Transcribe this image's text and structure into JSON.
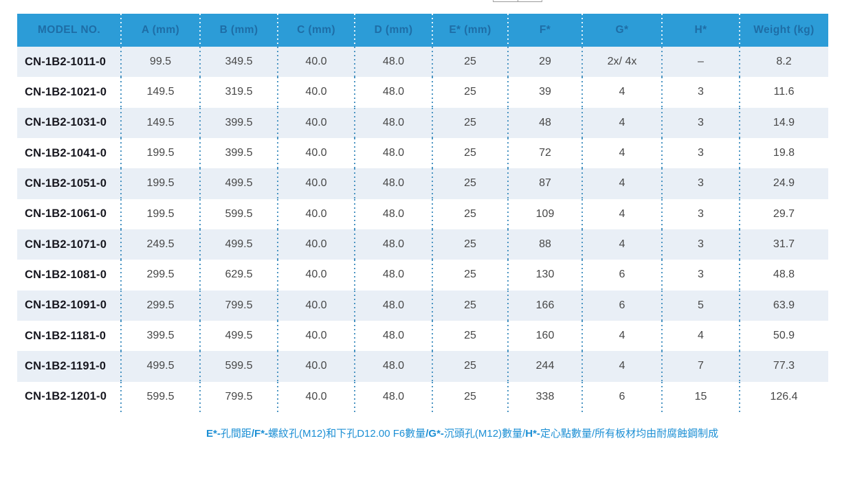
{
  "table": {
    "columns": [
      "MODEL NO.",
      "A (mm)",
      "B (mm)",
      "C (mm)",
      "D (mm)",
      "E* (mm)",
      "F*",
      "G*",
      "H*",
      "Weight (kg)"
    ],
    "rows": [
      [
        "CN-1B2-1011-0",
        "99.5",
        "349.5",
        "40.0",
        "48.0",
        "25",
        "29",
        "2x/ 4x",
        "–",
        "8.2"
      ],
      [
        "CN-1B2-1021-0",
        "149.5",
        "319.5",
        "40.0",
        "48.0",
        "25",
        "39",
        "4",
        "3",
        "11.6"
      ],
      [
        "CN-1B2-1031-0",
        "149.5",
        "399.5",
        "40.0",
        "48.0",
        "25",
        "48",
        "4",
        "3",
        "14.9"
      ],
      [
        "CN-1B2-1041-0",
        "199.5",
        "399.5",
        "40.0",
        "48.0",
        "25",
        "72",
        "4",
        "3",
        "19.8"
      ],
      [
        "CN-1B2-1051-0",
        "199.5",
        "499.5",
        "40.0",
        "48.0",
        "25",
        "87",
        "4",
        "3",
        "24.9"
      ],
      [
        "CN-1B2-1061-0",
        "199.5",
        "599.5",
        "40.0",
        "48.0",
        "25",
        "109",
        "4",
        "3",
        "29.7"
      ],
      [
        "CN-1B2-1071-0",
        "249.5",
        "499.5",
        "40.0",
        "48.0",
        "25",
        "88",
        "4",
        "3",
        "31.7"
      ],
      [
        "CN-1B2-1081-0",
        "299.5",
        "629.5",
        "40.0",
        "48.0",
        "25",
        "130",
        "6",
        "3",
        "48.8"
      ],
      [
        "CN-1B2-1091-0",
        "299.5",
        "799.5",
        "40.0",
        "48.0",
        "25",
        "166",
        "6",
        "5",
        "63.9"
      ],
      [
        "CN-1B2-1181-0",
        "399.5",
        "499.5",
        "40.0",
        "48.0",
        "25",
        "160",
        "4",
        "4",
        "50.9"
      ],
      [
        "CN-1B2-1191-0",
        "499.5",
        "599.5",
        "40.0",
        "48.0",
        "25",
        "244",
        "4",
        "7",
        "77.3"
      ],
      [
        "CN-1B2-1201-0",
        "599.5",
        "799.5",
        "40.0",
        "48.0",
        "25",
        "338",
        "6",
        "15",
        "126.4"
      ]
    ]
  },
  "footnote": {
    "segments": [
      {
        "text": "E*-",
        "bold": true
      },
      {
        "text": "孔間距",
        "bold": false
      },
      {
        "text": "/F*-",
        "bold": true
      },
      {
        "text": "螺紋孔(M12)和下孔D12.00 F6數量",
        "bold": false
      },
      {
        "text": "/G*-",
        "bold": true
      },
      {
        "text": "沉頭孔(M12)數量",
        "bold": false
      },
      {
        "text": "/",
        "bold": false
      },
      {
        "text": "H*-",
        "bold": true
      },
      {
        "text": "定心點數量/所有板材均由耐腐蝕鋼制成",
        "bold": false
      }
    ]
  },
  "colors": {
    "header_bg": "#2C9CD7",
    "header_text": "#1E6DA6",
    "row_alt_bg": "#E9EFF6",
    "body_text": "#474747",
    "model_text": "#17171F",
    "dot_body": "#4A94C2",
    "footnote_text": "#1C8FD4"
  }
}
